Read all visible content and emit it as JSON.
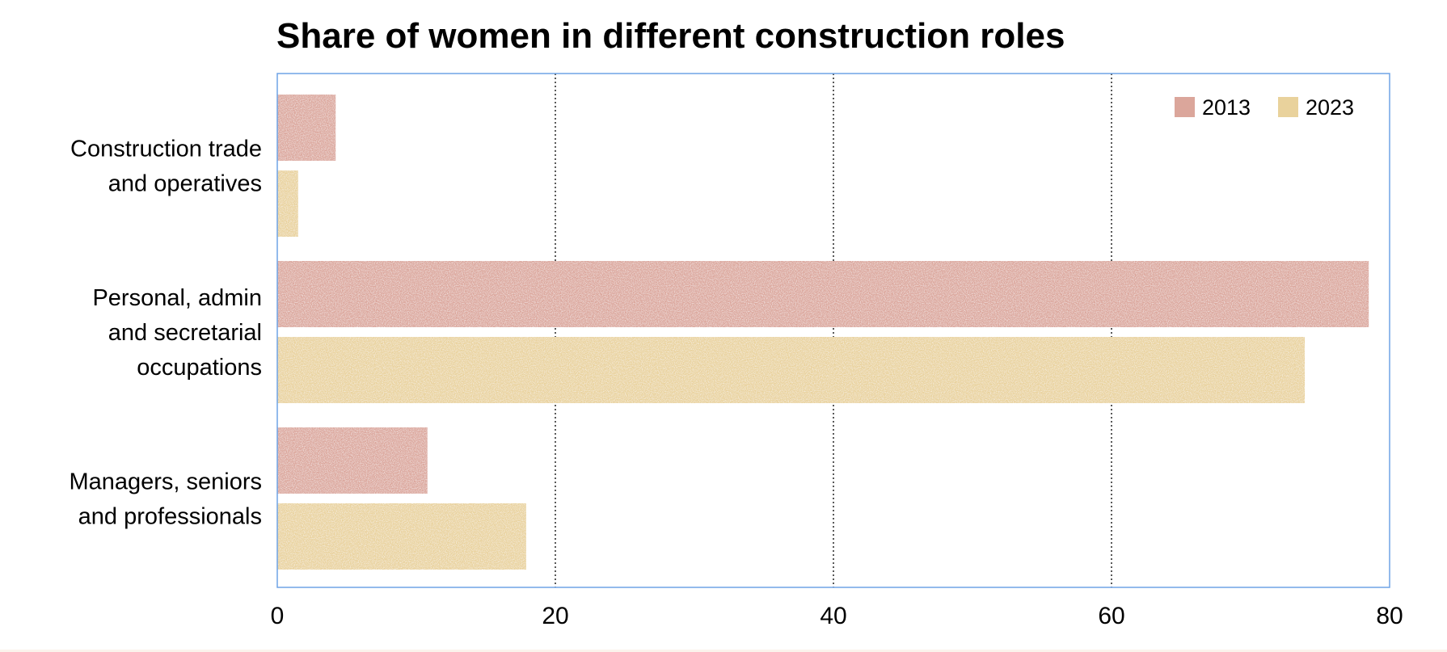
{
  "chart_data": {
    "type": "bar",
    "orientation": "horizontal",
    "title": "Share of women in different construction roles",
    "categories": [
      [
        "Construction trade",
        "and operatives"
      ],
      [
        "Personal, admin",
        "and secretarial",
        "occupations"
      ],
      [
        "Managers, seniors",
        "and professionals"
      ]
    ],
    "series": [
      {
        "name": "2013",
        "color": "#dba69b",
        "values": [
          4.2,
          78.5,
          10.8
        ]
      },
      {
        "name": "2023",
        "color": "#e9d29c",
        "values": [
          1.5,
          73.9,
          17.9
        ]
      }
    ],
    "xlim": [
      0,
      80
    ],
    "xticks": [
      "0",
      "20",
      "40",
      "60",
      "80"
    ],
    "xlabel": "",
    "ylabel": "",
    "grid": "vertical dotted",
    "legend": "top-right",
    "frame_color": "#6fa3e6"
  }
}
